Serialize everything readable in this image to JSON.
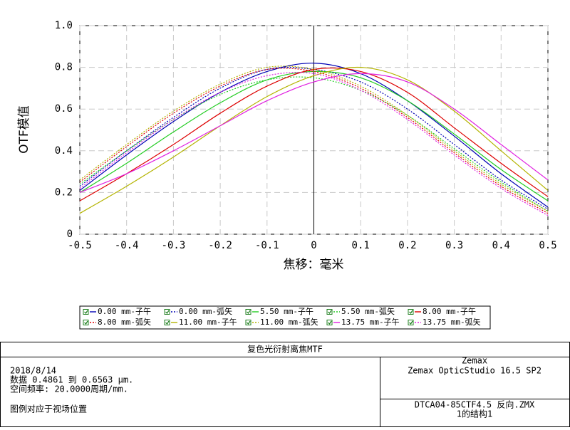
{
  "chart_data": {
    "type": "line",
    "x_label": "焦移：毫米",
    "y_label": "OTF模值",
    "x": [
      -0.5,
      -0.4,
      -0.3,
      -0.2,
      -0.1,
      0,
      0.1,
      0.2,
      0.3,
      0.4,
      0.5
    ],
    "series": [
      {
        "name": "0.00 mm-子午",
        "color": "#0000b4",
        "dash": "solid",
        "values": [
          0.21,
          0.38,
          0.54,
          0.68,
          0.78,
          0.82,
          0.77,
          0.64,
          0.47,
          0.29,
          0.13
        ]
      },
      {
        "name": "0.00 mm-弧矢",
        "color": "#0000b4",
        "dash": "dotted",
        "values": [
          0.23,
          0.4,
          0.56,
          0.7,
          0.79,
          0.79,
          0.73,
          0.6,
          0.43,
          0.26,
          0.12
        ]
      },
      {
        "name": "5.50 mm-子午",
        "color": "#22cc22",
        "dash": "solid",
        "values": [
          0.2,
          0.34,
          0.49,
          0.63,
          0.74,
          0.78,
          0.75,
          0.64,
          0.48,
          0.31,
          0.16
        ]
      },
      {
        "name": "5.50 mm-弧矢",
        "color": "#22cc22",
        "dash": "dotted",
        "values": [
          0.24,
          0.4,
          0.55,
          0.67,
          0.74,
          0.75,
          0.69,
          0.57,
          0.41,
          0.25,
          0.11
        ]
      },
      {
        "name": "8.00 mm-子午",
        "color": "#dd0000",
        "dash": "solid",
        "values": [
          0.16,
          0.29,
          0.43,
          0.58,
          0.71,
          0.79,
          0.78,
          0.68,
          0.51,
          0.34,
          0.18
        ]
      },
      {
        "name": "8.00 mm-弧矢",
        "color": "#dd0000",
        "dash": "dotted",
        "values": [
          0.25,
          0.42,
          0.58,
          0.71,
          0.79,
          0.78,
          0.7,
          0.56,
          0.39,
          0.23,
          0.1
        ]
      },
      {
        "name": "11.00 mm-子午",
        "color": "#b4b400",
        "dash": "solid",
        "values": [
          0.1,
          0.23,
          0.37,
          0.52,
          0.66,
          0.76,
          0.8,
          0.74,
          0.59,
          0.4,
          0.21
        ]
      },
      {
        "name": "11.00 mm-弧矢",
        "color": "#b4b400",
        "dash": "dotted",
        "values": [
          0.26,
          0.43,
          0.59,
          0.72,
          0.8,
          0.79,
          0.71,
          0.57,
          0.4,
          0.24,
          0.11
        ]
      },
      {
        "name": "13.75 mm-子午",
        "color": "#e020e0",
        "dash": "solid",
        "values": [
          0.2,
          0.29,
          0.4,
          0.52,
          0.64,
          0.73,
          0.77,
          0.73,
          0.6,
          0.43,
          0.26
        ]
      },
      {
        "name": "13.75 mm-弧矢",
        "color": "#e020e0",
        "dash": "dotted",
        "values": [
          0.22,
          0.39,
          0.55,
          0.68,
          0.76,
          0.77,
          0.69,
          0.55,
          0.38,
          0.22,
          0.09
        ]
      }
    ],
    "xlim": [
      -0.5,
      0.5
    ],
    "ylim": [
      0,
      1
    ],
    "xticks": [
      -0.5,
      -0.4,
      -0.3,
      -0.2,
      -0.1,
      0,
      0.1,
      0.2,
      0.3,
      0.4,
      0.5
    ],
    "yticks": [
      0,
      0.2,
      0.4,
      0.6,
      0.8,
      {
        "value": 1,
        "label": "1.0"
      }
    ],
    "grid": true,
    "legend": "bottom"
  },
  "footer": {
    "title": "复色光衍射离焦MTF",
    "left": [
      "2018/8/14",
      "数据 0.4861 到 0.6563 μm.",
      "空间频率: 20.0000周期/mm."
    ],
    "note": "图例对应于视场位置",
    "right_top": [
      "Zemax",
      "Zemax OpticStudio 16.5 SP2"
    ],
    "right_bottom": [
      "DTCA04-85CTF4.5 反向.ZMX",
      "1的结构1"
    ]
  }
}
